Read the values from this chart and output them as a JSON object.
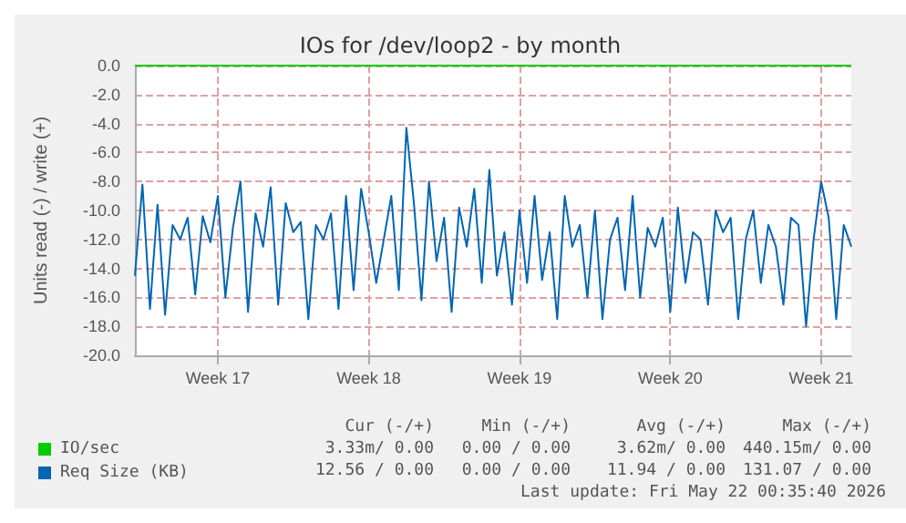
{
  "chart_data": {
    "type": "line",
    "title": "IOs for /dev/loop2 - by month",
    "ylabel": "Units read (-) / write (+)",
    "categories": [
      null,
      null,
      null,
      null,
      null,
      null,
      null,
      null,
      null,
      null,
      null,
      "Week 17",
      null,
      null,
      null,
      null,
      null,
      null,
      null,
      null,
      null,
      null,
      null,
      null,
      null,
      null,
      null,
      null,
      null,
      null,
      null,
      "Week 18",
      null,
      null,
      null,
      null,
      null,
      null,
      null,
      null,
      null,
      null,
      null,
      null,
      null,
      null,
      null,
      null,
      null,
      null,
      null,
      "Week 19",
      null,
      null,
      null,
      null,
      null,
      null,
      null,
      null,
      null,
      null,
      null,
      null,
      null,
      null,
      null,
      null,
      null,
      null,
      null,
      "Week 20",
      null,
      null,
      null,
      null,
      null,
      null,
      null,
      null,
      null,
      null,
      null,
      null,
      null,
      null,
      null,
      null,
      null,
      null,
      null,
      "Week 21",
      null,
      null,
      null,
      null
    ],
    "ylim": [
      -20,
      0
    ],
    "yticks": [
      {
        "value": -20,
        "label": "-20.0"
      },
      {
        "value": -18,
        "label": "-18.0"
      },
      {
        "value": -16,
        "label": "-16.0"
      },
      {
        "value": -14,
        "label": "-14.0"
      },
      {
        "value": -12,
        "label": "-12.0"
      },
      {
        "value": -10,
        "label": "-10.0"
      },
      {
        "value": -8,
        "label": "-8.0"
      },
      {
        "value": -6,
        "label": "-6.0"
      },
      {
        "value": -4,
        "label": "-4.0"
      },
      {
        "value": -2,
        "label": "-2.0"
      },
      {
        "value": 0,
        "label": "0.0"
      }
    ],
    "grid": true,
    "legend": "bottom left",
    "series": [
      {
        "name": "IO/sec",
        "color": "#00cc00",
        "values": [
          0,
          0,
          0,
          0,
          0,
          0,
          0,
          0,
          0,
          0,
          0,
          0,
          0,
          0,
          0,
          0,
          0,
          0,
          0,
          0,
          0,
          0,
          0,
          0,
          0,
          0,
          0,
          0,
          0,
          0,
          0,
          0,
          0,
          0,
          0,
          0,
          0,
          0,
          0,
          0,
          0,
          0,
          0,
          0,
          0,
          0,
          0,
          0,
          0,
          0,
          0,
          0,
          0,
          0,
          0,
          0,
          0,
          0,
          0,
          0,
          0,
          0,
          0,
          0,
          0,
          0,
          0,
          0,
          0,
          0,
          0,
          0,
          0,
          0,
          0,
          0,
          0,
          0,
          0,
          0,
          0,
          0,
          0,
          0,
          0,
          0,
          0,
          0,
          0,
          0,
          0,
          0,
          0,
          0,
          0,
          0
        ]
      },
      {
        "name": "Req Size (KB)",
        "color": "#0066b3",
        "values": [
          -14.5,
          -8.2,
          -16.8,
          -9.6,
          -17.2,
          -11.0,
          -12.0,
          -10.5,
          -15.8,
          -10.4,
          -12.2,
          -9.0,
          -16.0,
          -11.2,
          -8.0,
          -17.0,
          -10.2,
          -12.5,
          -8.4,
          -16.5,
          -9.5,
          -11.5,
          -10.8,
          -17.5,
          -11.0,
          -12.0,
          -10.2,
          -16.8,
          -9.0,
          -15.5,
          -8.5,
          -11.5,
          -15.0,
          -12.0,
          -9.0,
          -15.5,
          -4.3,
          -9.5,
          -16.2,
          -8.0,
          -13.5,
          -10.5,
          -17.0,
          -9.8,
          -12.5,
          -8.5,
          -15.0,
          -7.2,
          -14.5,
          -11.5,
          -16.5,
          -10.0,
          -15.0,
          -9.0,
          -14.8,
          -11.5,
          -17.5,
          -9.0,
          -12.5,
          -11.0,
          -16.0,
          -10.0,
          -17.5,
          -12.0,
          -10.5,
          -15.5,
          -9.0,
          -16.0,
          -11.2,
          -12.5,
          -10.5,
          -17.0,
          -9.8,
          -15.0,
          -11.5,
          -12.0,
          -16.5,
          -10.0,
          -11.5,
          -10.5,
          -17.5,
          -12.0,
          -10.0,
          -15.0,
          -11.0,
          -12.5,
          -16.5,
          -10.5,
          -11.0,
          -18.0,
          -12.0,
          -8.0,
          -10.5,
          -17.5,
          -11.0,
          -12.5
        ]
      }
    ],
    "annotations": [
      "Cur (-/+)",
      "Min (-/+)",
      "Avg (-/+)",
      "Max (-/+)",
      "3.33m/ 0.00",
      "0.00 / 0.00",
      "3.62m/ 0.00",
      "440.15m/ 0.00",
      "12.56 / 0.00",
      "0.00 / 0.00",
      "11.94 / 0.00",
      "131.07 / 0.00",
      "Last update: Fri May 22 00:35:40 2026"
    ]
  }
}
